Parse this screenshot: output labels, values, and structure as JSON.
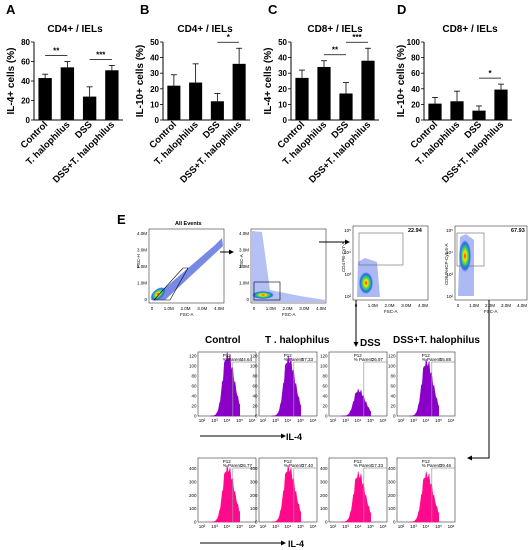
{
  "panels": {
    "A": {
      "label": "A"
    },
    "B": {
      "label": "B"
    },
    "C": {
      "label": "C"
    },
    "D": {
      "label": "D"
    },
    "E": {
      "label": "E"
    }
  },
  "chart_data": [
    {
      "id": "A",
      "type": "bar",
      "title": "CD4+ / IELs",
      "ylabel": "IL-4+ cells (%)",
      "categories": [
        "Control",
        "T. halophilus",
        "DSS",
        "DSS+T. halophilus"
      ],
      "values": [
        43,
        54,
        24,
        51
      ],
      "errors": [
        4,
        6,
        10,
        5
      ],
      "ylim": [
        0,
        80
      ],
      "yticks": [
        "0",
        "20",
        "40",
        "60",
        "80"
      ],
      "significance": [
        {
          "label": "**",
          "from": 0,
          "to": 1
        },
        {
          "label": "***",
          "from": 2,
          "to": 3
        }
      ]
    },
    {
      "id": "B",
      "type": "bar",
      "title": "CD4+ / IELs",
      "ylabel": "IL-10+ cells (%)",
      "categories": [
        "Control",
        "T. halophilus",
        "DSS",
        "DSS+T. halophilus"
      ],
      "values": [
        22,
        24,
        12,
        36
      ],
      "errors": [
        7,
        12,
        5,
        10
      ],
      "ylim": [
        0,
        50
      ],
      "yticks": [
        "0",
        "10",
        "20",
        "30",
        "40",
        "50"
      ],
      "significance": [
        {
          "label": "*",
          "from": 2,
          "to": 3
        }
      ]
    },
    {
      "id": "C",
      "type": "bar",
      "title": "CD8+ / IELs",
      "ylabel": "IL-4+ cells (%)",
      "categories": [
        "Control",
        "T. halophilus",
        "DSS",
        "DSS+T. halophilus"
      ],
      "values": [
        27,
        34,
        17,
        38
      ],
      "errors": [
        5,
        4,
        7,
        8
      ],
      "ylim": [
        0,
        50
      ],
      "yticks": [
        "0",
        "10",
        "20",
        "30",
        "40",
        "50"
      ],
      "significance": [
        {
          "label": "**",
          "from": 1,
          "to": 2
        },
        {
          "label": "***",
          "from": 2,
          "to": 3
        }
      ]
    },
    {
      "id": "D",
      "type": "bar",
      "title": "CD8+ / IELs",
      "ylabel": "IL-10+ cells (%)",
      "categories": [
        "Control",
        "T. halophilus",
        "DSS",
        "DSS+T. halophilus"
      ],
      "values": [
        21,
        24,
        12,
        39
      ],
      "errors": [
        8,
        13,
        6,
        7
      ],
      "ylim": [
        0,
        100
      ],
      "yticks": [
        "0",
        "20",
        "40",
        "60",
        "80",
        "100"
      ],
      "significance": [
        {
          "label": "*",
          "from": 2,
          "to": 3
        }
      ]
    }
  ],
  "flow": {
    "plot1_title": "All Events",
    "plot1_xlabel": "FSC-A",
    "plot1_ylabel": "FSC-H",
    "plot2_xlabel": "FSC-A",
    "plot2_ylabel": "SSC-A",
    "plot3_xlabel": "FSC-A",
    "plot3_ylabel": "CD4 PE-Cy7-A",
    "plot3_value": "22.94",
    "plot4_xlabel": "FSC-A",
    "plot4_ylabel": "CD8 PerCP-Cy5-5-A",
    "plot4_value": "67.93",
    "xticks": [
      "0",
      "1.0M",
      "2.0M",
      "3.0M",
      "4.0M"
    ],
    "yticks": [
      "0",
      "1.0M",
      "2.0M",
      "3.0M",
      "4.0M"
    ],
    "log_ticks": [
      "10²",
      "10³",
      "10⁴",
      "10⁵"
    ],
    "groups": [
      "Control",
      "T . halophilus",
      "DSS",
      "DSS+T. halophilus"
    ],
    "gate": "P12",
    "parent_label": "% Parent:",
    "row1_values": [
      "44.64",
      "57.33",
      "26.97",
      "55.88"
    ],
    "row2_values": [
      "26.77",
      "37.40",
      "17.33",
      "39.46"
    ],
    "row1_yticks": [
      "0",
      "20",
      "40",
      "60",
      "80",
      "100",
      "120"
    ],
    "row2_yticks": [
      "0",
      "50",
      "100",
      "150",
      "200",
      "250",
      "300",
      "350",
      "400",
      "450"
    ],
    "hist_xticks": [
      "10²",
      "10³",
      "10⁴",
      "10⁵",
      "10⁶"
    ],
    "axis_label": "IL-4"
  },
  "colors": {
    "bar": "#000000",
    "row1": "#8a00c8",
    "row2": "#ff0a8c",
    "gate": "#9a9a9a"
  }
}
